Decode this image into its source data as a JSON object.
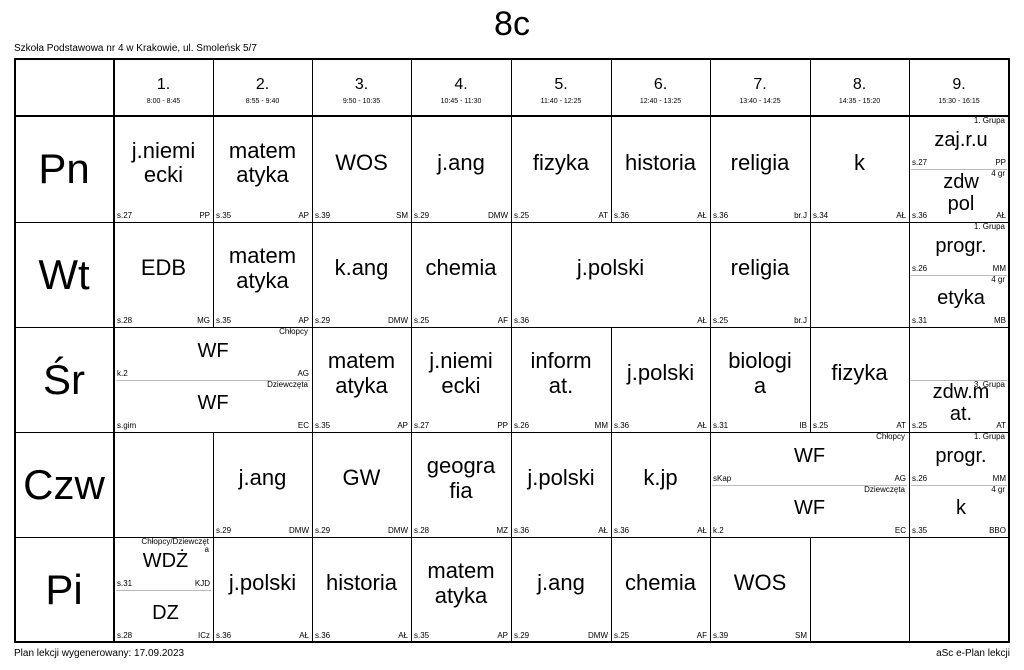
{
  "title": "8c",
  "school": "Szkoła Podstawowa nr 4 w Krakowie, ul. Smoleńsk 5/7",
  "footer_left": "Plan lekcji wygenerowany: 17.09.2023",
  "footer_right": "aSc e-Plan lekcji",
  "periods": [
    {
      "num": "1.",
      "time": "8:00 - 8:45"
    },
    {
      "num": "2.",
      "time": "8:55 - 9:40"
    },
    {
      "num": "3.",
      "time": "9:50 - 10:35"
    },
    {
      "num": "4.",
      "time": "10:45 - 11:30"
    },
    {
      "num": "5.",
      "time": "11:40 - 12:25"
    },
    {
      "num": "6.",
      "time": "12:40 - 13:25"
    },
    {
      "num": "7.",
      "time": "13:40 - 14:25"
    },
    {
      "num": "8.",
      "time": "14:35 - 15:20"
    },
    {
      "num": "9.",
      "time": "15:30 - 16:15"
    }
  ],
  "days": [
    "Pn",
    "Wt",
    "Śr",
    "Czw",
    "Pi"
  ],
  "lessons": [
    {
      "day": 0,
      "p": 0,
      "subject": "j.niemi\necki",
      "room": "s.27",
      "teacher": "PP"
    },
    {
      "day": 0,
      "p": 1,
      "subject": "matem\natyka",
      "room": "s.35",
      "teacher": "AP"
    },
    {
      "day": 0,
      "p": 2,
      "subject": "WOS",
      "room": "s.39",
      "teacher": "SM"
    },
    {
      "day": 0,
      "p": 3,
      "subject": "j.ang",
      "room": "s.29",
      "teacher": "DMW"
    },
    {
      "day": 0,
      "p": 4,
      "subject": "fizyka",
      "room": "s.25",
      "teacher": "AT"
    },
    {
      "day": 0,
      "p": 5,
      "subject": "historia",
      "room": "s.36",
      "teacher": "AŁ"
    },
    {
      "day": 0,
      "p": 6,
      "subject": "religia",
      "room": "s.36",
      "teacher": "br.J"
    },
    {
      "day": 0,
      "p": 7,
      "subject": "k",
      "room": "s.34",
      "teacher": "AŁ"
    },
    {
      "day": 0,
      "p": 8,
      "half": "top",
      "group": "1. Grupa",
      "subject": "zaj.r.u",
      "room": "s.27",
      "teacher": "PP"
    },
    {
      "day": 0,
      "p": 8,
      "half": "bottom",
      "group": "4 gr",
      "subject": "zdw\npol",
      "room": "s.36",
      "teacher": "AŁ"
    },
    {
      "day": 1,
      "p": 0,
      "subject": "EDB",
      "room": "s.28",
      "teacher": "MG"
    },
    {
      "day": 1,
      "p": 1,
      "subject": "matem\natyka",
      "room": "s.35",
      "teacher": "AP"
    },
    {
      "day": 1,
      "p": 2,
      "subject": "k.ang",
      "room": "s.29",
      "teacher": "DMW"
    },
    {
      "day": 1,
      "p": 3,
      "subject": "chemia",
      "room": "s.25",
      "teacher": "AF"
    },
    {
      "day": 1,
      "p": 4,
      "span": 2,
      "subject": "j.polski",
      "room": "s.36",
      "teacher": "AŁ"
    },
    {
      "day": 1,
      "p": 6,
      "subject": "religia",
      "room": "s.25",
      "teacher": "br.J"
    },
    {
      "day": 1,
      "p": 8,
      "half": "top",
      "group": "1. Grupa",
      "subject": "progr.",
      "room": "s.26",
      "teacher": "MM"
    },
    {
      "day": 1,
      "p": 8,
      "half": "bottom",
      "group": "4 gr",
      "subject": "etyka",
      "room": "s.31",
      "teacher": "MB"
    },
    {
      "day": 2,
      "p": 0,
      "span": 2,
      "half": "top",
      "group": "Chłopcy",
      "subject": "WF",
      "room": "k.2",
      "teacher": "AG"
    },
    {
      "day": 2,
      "p": 0,
      "span": 2,
      "half": "bottom",
      "group": "Dziewczęta",
      "subject": "WF",
      "room": "s.gim",
      "teacher": "EC"
    },
    {
      "day": 2,
      "p": 2,
      "subject": "matem\natyka",
      "room": "s.35",
      "teacher": "AP"
    },
    {
      "day": 2,
      "p": 3,
      "subject": "j.niemi\necki",
      "room": "s.27",
      "teacher": "PP"
    },
    {
      "day": 2,
      "p": 4,
      "subject": "inform\nat.",
      "room": "s.26",
      "teacher": "MM"
    },
    {
      "day": 2,
      "p": 5,
      "subject": "j.polski",
      "room": "s.36",
      "teacher": "AŁ"
    },
    {
      "day": 2,
      "p": 6,
      "subject": "biologi\na",
      "room": "s.31",
      "teacher": "IB"
    },
    {
      "day": 2,
      "p": 7,
      "subject": "fizyka",
      "room": "s.25",
      "teacher": "AT"
    },
    {
      "day": 2,
      "p": 8,
      "half": "bottom",
      "group": "3. Grupa",
      "subject": "zdw.m\nat.",
      "room": "s.25",
      "teacher": "AT"
    },
    {
      "day": 3,
      "p": 1,
      "subject": "j.ang",
      "room": "s.29",
      "teacher": "DMW"
    },
    {
      "day": 3,
      "p": 2,
      "subject": "GW",
      "room": "s.29",
      "teacher": "DMW"
    },
    {
      "day": 3,
      "p": 3,
      "subject": "geogra\nfia",
      "room": "s.28",
      "teacher": "MZ"
    },
    {
      "day": 3,
      "p": 4,
      "subject": "j.polski",
      "room": "s.36",
      "teacher": "AŁ"
    },
    {
      "day": 3,
      "p": 5,
      "subject": "k.jp",
      "room": "s.36",
      "teacher": "AŁ"
    },
    {
      "day": 3,
      "p": 6,
      "span": 2,
      "half": "top",
      "group": "Chłopcy",
      "subject": "WF",
      "room": "sKap",
      "teacher": "AG"
    },
    {
      "day": 3,
      "p": 6,
      "span": 2,
      "half": "bottom",
      "group": "Dziewczęta",
      "subject": "WF",
      "room": "k.2",
      "teacher": "EC"
    },
    {
      "day": 3,
      "p": 8,
      "half": "top",
      "group": "1. Grupa",
      "subject": "progr.",
      "room": "s.26",
      "teacher": "MM"
    },
    {
      "day": 3,
      "p": 8,
      "half": "bottom",
      "group": "4 gr",
      "subject": "k",
      "room": "s.35",
      "teacher": "BBO"
    },
    {
      "day": 4,
      "p": 0,
      "half": "top",
      "group": "Chłopcy/Dziewczęt\na",
      "subject": "WDŻ",
      "room": "s.31",
      "teacher": "KJD"
    },
    {
      "day": 4,
      "p": 0,
      "half": "bottom",
      "group": "",
      "subject": "DZ",
      "room": "s.28",
      "teacher": "ICz"
    },
    {
      "day": 4,
      "p": 1,
      "subject": "j.polski",
      "room": "s.36",
      "teacher": "AŁ"
    },
    {
      "day": 4,
      "p": 2,
      "subject": "historia",
      "room": "s.36",
      "teacher": "AŁ"
    },
    {
      "day": 4,
      "p": 3,
      "subject": "matem\natyka",
      "room": "s.35",
      "teacher": "AP"
    },
    {
      "day": 4,
      "p": 4,
      "subject": "j.ang",
      "room": "s.29",
      "teacher": "DMW"
    },
    {
      "day": 4,
      "p": 5,
      "subject": "chemia",
      "room": "s.25",
      "teacher": "AF"
    },
    {
      "day": 4,
      "p": 6,
      "subject": "WOS",
      "room": "s.39",
      "teacher": "SM"
    }
  ]
}
